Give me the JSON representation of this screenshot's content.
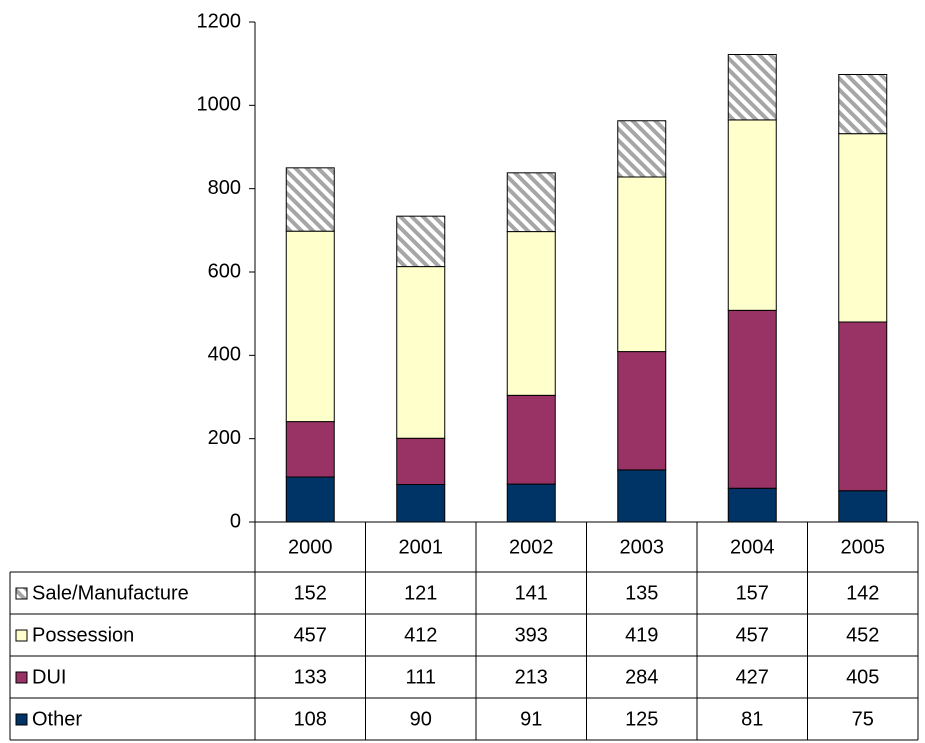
{
  "chart_data": {
    "type": "stacked-bar",
    "categories": [
      "2000",
      "2001",
      "2002",
      "2003",
      "2004",
      "2005"
    ],
    "series": [
      {
        "name": "Sale/Manufacture",
        "color": "#a6a6a6",
        "hatch": true,
        "values": [
          152,
          121,
          141,
          135,
          157,
          142
        ]
      },
      {
        "name": "Possession",
        "color": "#ffffcc",
        "values": [
          457,
          412,
          393,
          419,
          457,
          452
        ]
      },
      {
        "name": "DUI",
        "color": "#993366",
        "values": [
          133,
          111,
          213,
          284,
          427,
          405
        ]
      },
      {
        "name": "Other",
        "color": "#003366",
        "values": [
          108,
          90,
          91,
          125,
          81,
          75
        ]
      }
    ],
    "ylim": [
      0,
      1200
    ],
    "yticks": [
      0,
      200,
      400,
      600,
      800,
      1000,
      1200
    ],
    "grid": false,
    "data_table": true
  }
}
